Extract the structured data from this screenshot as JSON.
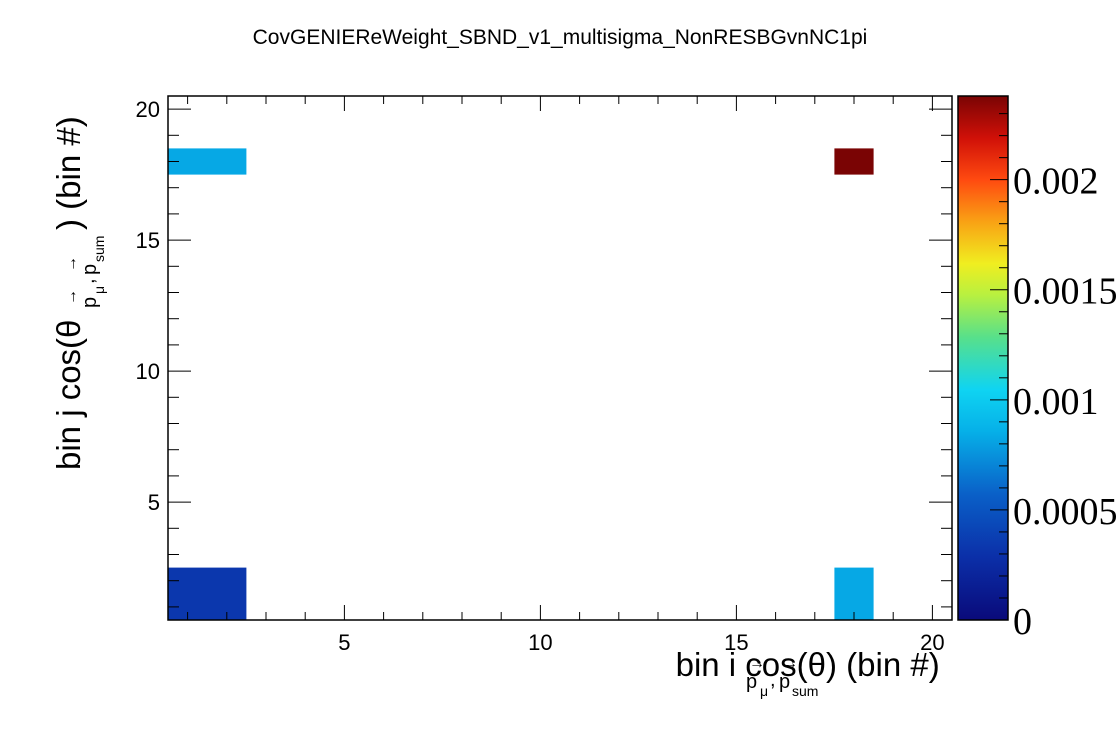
{
  "chart_data": {
    "type": "heatmap",
    "title": "CovGENIEReWeight_SBND_v1_multisigma_NonRESBGvnNC1pi",
    "xlabel": {
      "main": "bin i cos(θ",
      "sub1": "p",
      "sub1_index": "μ",
      "comma": ",",
      "sub2": "p",
      "sub2_index": "sum",
      "tail": ") (bin #)"
    },
    "ylabel": {
      "main": "bin j cos(θ",
      "sub1": "p",
      "sub1_index": "μ",
      "comma": ",",
      "sub2": "p",
      "sub2_index": "sum",
      "tail": ") (bin #)"
    },
    "xlim": [
      0.5,
      20.5
    ],
    "ylim": [
      0.5,
      20.5
    ],
    "x_ticks": [
      5,
      10,
      15,
      20
    ],
    "y_ticks": [
      5,
      10,
      15,
      20
    ],
    "zlim": [
      0,
      0.00238
    ],
    "z_ticks": [
      0,
      0.0005,
      0.001,
      0.0015,
      0.002
    ],
    "z_tick_labels": [
      "0",
      "0.0005",
      "0.001",
      "0.0015",
      "0.002"
    ],
    "colormap": "rainbow (dark blue → cyan → green → yellow → red → dark red)",
    "grid": false,
    "cells": [
      {
        "x0": 0.5,
        "x1": 2.5,
        "y0": 0.5,
        "y1": 2.5,
        "z": 0.00033
      },
      {
        "x0": 0.5,
        "x1": 2.5,
        "y0": 17.5,
        "y1": 18.5,
        "z": 0.00083
      },
      {
        "x0": 17.5,
        "x1": 18.5,
        "y0": 0.5,
        "y1": 2.5,
        "z": 0.00083
      },
      {
        "x0": 17.5,
        "x1": 18.5,
        "y0": 17.5,
        "y1": 18.5,
        "z": 0.00238
      }
    ]
  }
}
